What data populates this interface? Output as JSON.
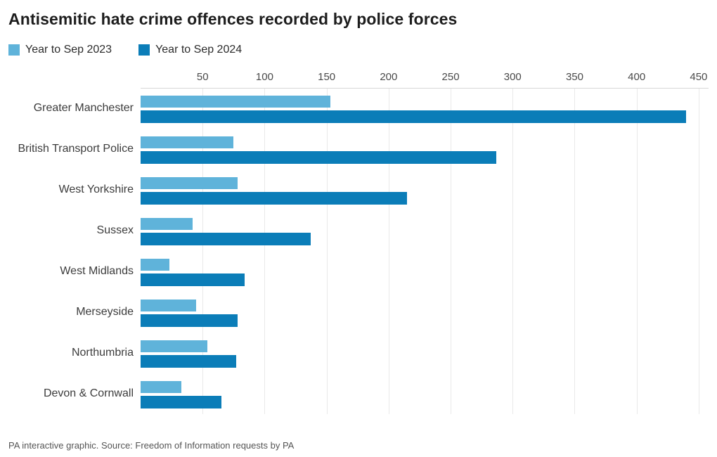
{
  "title": "Antisemitic hate crime offences recorded by police forces",
  "footer": "PA interactive graphic. Source: Freedom of Information requests by PA",
  "colors": {
    "series_2023": "#5fb3da",
    "series_2024": "#0b7db8",
    "gridline": "#e9e9e9",
    "axis_line": "#d8d8d8"
  },
  "chart_data": {
    "type": "bar",
    "orientation": "horizontal",
    "title": "Antisemitic hate crime offences recorded by police forces",
    "categories": [
      "Greater Manchester",
      "British Transport Police",
      "West Yorkshire",
      "Sussex",
      "West Midlands",
      "Merseyside",
      "Northumbria",
      "Devon & Cornwall"
    ],
    "series": [
      {
        "name": "Year to Sep 2023",
        "color": "#5fb3da",
        "values": [
          153,
          75,
          78,
          42,
          23,
          45,
          54,
          33
        ]
      },
      {
        "name": "Year to Sep 2024",
        "color": "#0b7db8",
        "values": [
          440,
          287,
          215,
          137,
          84,
          78,
          77,
          65
        ]
      }
    ],
    "xticks": [
      50,
      100,
      150,
      200,
      250,
      300,
      350,
      400,
      450
    ],
    "xlim": [
      0,
      450
    ],
    "grid": true,
    "legend_position": "top-left",
    "source_note": "PA interactive graphic. Source: Freedom of Information requests by PA"
  }
}
